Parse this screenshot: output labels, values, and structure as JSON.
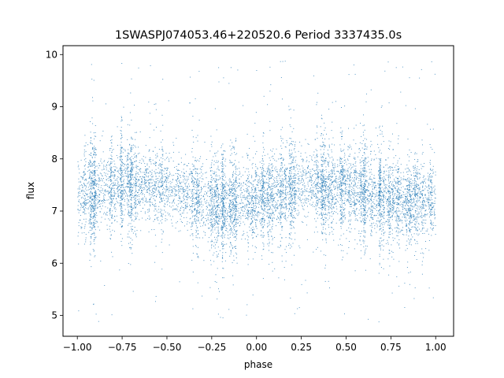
{
  "chart_data": {
    "type": "scatter",
    "title": "1SWASPJ074053.46+220520.6 Period 3337435.0s",
    "xlabel": "phase",
    "ylabel": "flux",
    "xlim": [
      -1.08,
      1.1
    ],
    "ylim": [
      4.6,
      10.17
    ],
    "xticks": [
      -1.0,
      -0.75,
      -0.5,
      -0.25,
      0.0,
      0.25,
      0.5,
      0.75,
      1.0
    ],
    "xtick_labels": [
      "−1.00",
      "−0.75",
      "−0.50",
      "−0.25",
      "0.00",
      "0.25",
      "0.50",
      "0.75",
      "1.00"
    ],
    "yticks": [
      5,
      6,
      7,
      8,
      9,
      10
    ],
    "ytick_labels": [
      "5",
      "6",
      "7",
      "8",
      "9",
      "10"
    ],
    "grid": false,
    "series_color": "#1f77b4",
    "series": [
      {
        "x_range": [
          -1.0,
          1.0
        ],
        "description_profile": [
          {
            "x": -1.0,
            "median": 7.25
          },
          {
            "x": -0.75,
            "median": 7.55
          },
          {
            "x": -0.5,
            "median": 7.45
          },
          {
            "x": -0.25,
            "median": 7.15
          },
          {
            "x": 0.0,
            "median": 7.2
          },
          {
            "x": 0.25,
            "median": 7.5
          },
          {
            "x": 0.5,
            "median": 7.45
          },
          {
            "x": 0.75,
            "median": 7.2
          },
          {
            "x": 1.0,
            "median": 7.25
          }
        ],
        "core_band": [
          6.7,
          8.2
        ],
        "outlier_range": [
          4.85,
          9.9
        ]
      }
    ]
  }
}
